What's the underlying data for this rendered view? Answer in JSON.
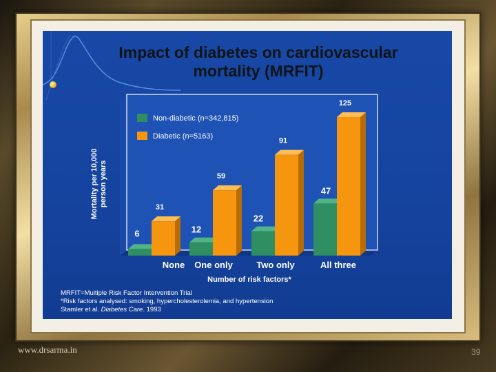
{
  "slide": {
    "title_line1": "Impact of diabetes on cardiovascular",
    "title_line2": "mortality (MRFIT)",
    "footnote1": "MRFIT=Multiple Risk Factor Intervention Trial",
    "footnote2": "*Risk factors analysed: smoking, hypercholesterolemia, and hypertension",
    "footnote3_prefix": "Stamler et al. ",
    "footnote3_journal": "Diabetes Care",
    "footnote3_suffix": ". 1993"
  },
  "footer": {
    "website": "www.drsarma.in",
    "page_number": "39"
  },
  "colors": {
    "non_diabetic": "#2f8f63",
    "diabetic": "#f6960f",
    "slide_bg": "#1848a6"
  },
  "chart_data": {
    "type": "bar",
    "title": "Impact of diabetes on cardiovascular mortality (MRFIT)",
    "xlabel": "Number of risk factors*",
    "ylabel_line1": "Mortality per 10,000",
    "ylabel_line2": "person years",
    "categories": [
      "None",
      "One only",
      "Two only",
      "All three"
    ],
    "series": [
      {
        "name": "Non-diabetic (n=342,815)",
        "values": [
          6,
          12,
          22,
          47
        ]
      },
      {
        "name": "Diabetic (n=5163)",
        "values": [
          31,
          59,
          91,
          125
        ]
      }
    ],
    "ylim": [
      0,
      130
    ],
    "legend": "top-left",
    "grid": false
  }
}
